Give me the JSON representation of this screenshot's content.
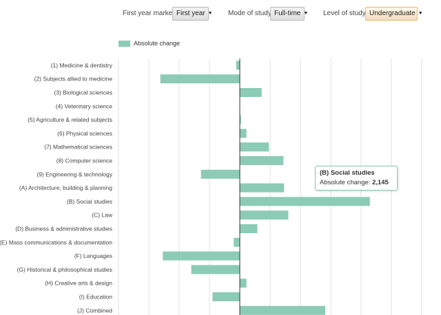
{
  "controls": {
    "first_year_marker": {
      "label": "First year marker",
      "value": "First year"
    },
    "mode_of_study": {
      "label": "Mode of study",
      "value": "Full-time"
    },
    "level_of_study": {
      "label": "Level of study",
      "value": "Undergraduate"
    }
  },
  "tooltip": {
    "title": "(B) Social studies",
    "metric": "Absolute change:",
    "value": "2,145"
  },
  "colors": {
    "bar": "#8ccbb5",
    "grid": "#e0e0e0",
    "axis": "#333333"
  },
  "chart_data": {
    "type": "bar",
    "orientation": "horizontal",
    "grid": true,
    "xlim": [
      -2000,
      3000
    ],
    "categories": [
      "(1) Medicine & dentistry",
      "(2) Subjects allied to medicine",
      "(3) Biological sciences",
      "(4) Veterinary science",
      "(5) Agriculture & related subjects",
      "(6) Physical sciences",
      "(7) Mathematical sciences",
      "(8) Computer science",
      "(9) Engineering & technology",
      "(A) Architecture, building & planning",
      "(B) Social studies",
      "(C) Law",
      "(D) Business & administrative studies",
      "(E) Mass communications & documentation",
      "(F) Languages",
      "(G) Historical & philosophical studies",
      "(H) Creative arts & design",
      "(I) Education",
      "(J) Combined"
    ],
    "series": [
      {
        "name": "Absolute change",
        "values": [
          -60,
          -1310,
          360,
          0,
          20,
          110,
          480,
          720,
          -640,
          730,
          2145,
          800,
          290,
          -100,
          -1270,
          -800,
          110,
          -450,
          1410
        ]
      }
    ]
  }
}
